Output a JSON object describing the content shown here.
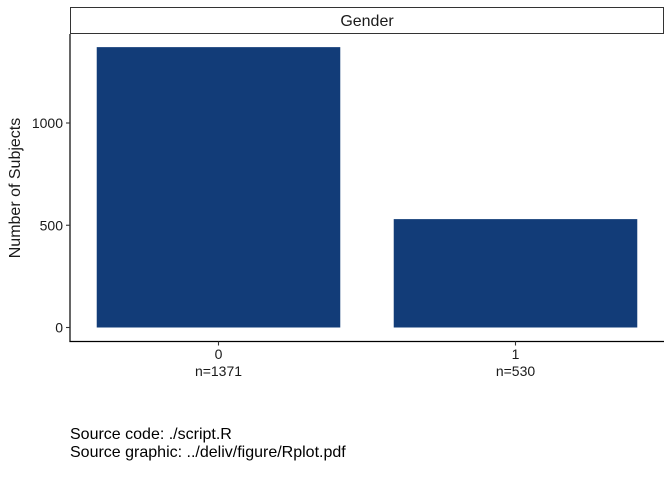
{
  "chart_data": {
    "type": "bar",
    "facet_label": "Gender",
    "categories": [
      "0",
      "1"
    ],
    "category_sublabels": [
      "n=1371",
      "n=530"
    ],
    "values": [
      1371,
      530
    ],
    "ylabel": "Number of Subjects",
    "xlabel": "",
    "yticks": [
      0,
      500,
      1000
    ],
    "ylim": [
      0,
      1400
    ],
    "bar_color": "#123c78",
    "grid": false,
    "legend": "none"
  },
  "footnotes": {
    "source_code": "Source code: ./script.R",
    "source_graphic": "Source graphic: ../deliv/figure/Rplot.pdf"
  }
}
